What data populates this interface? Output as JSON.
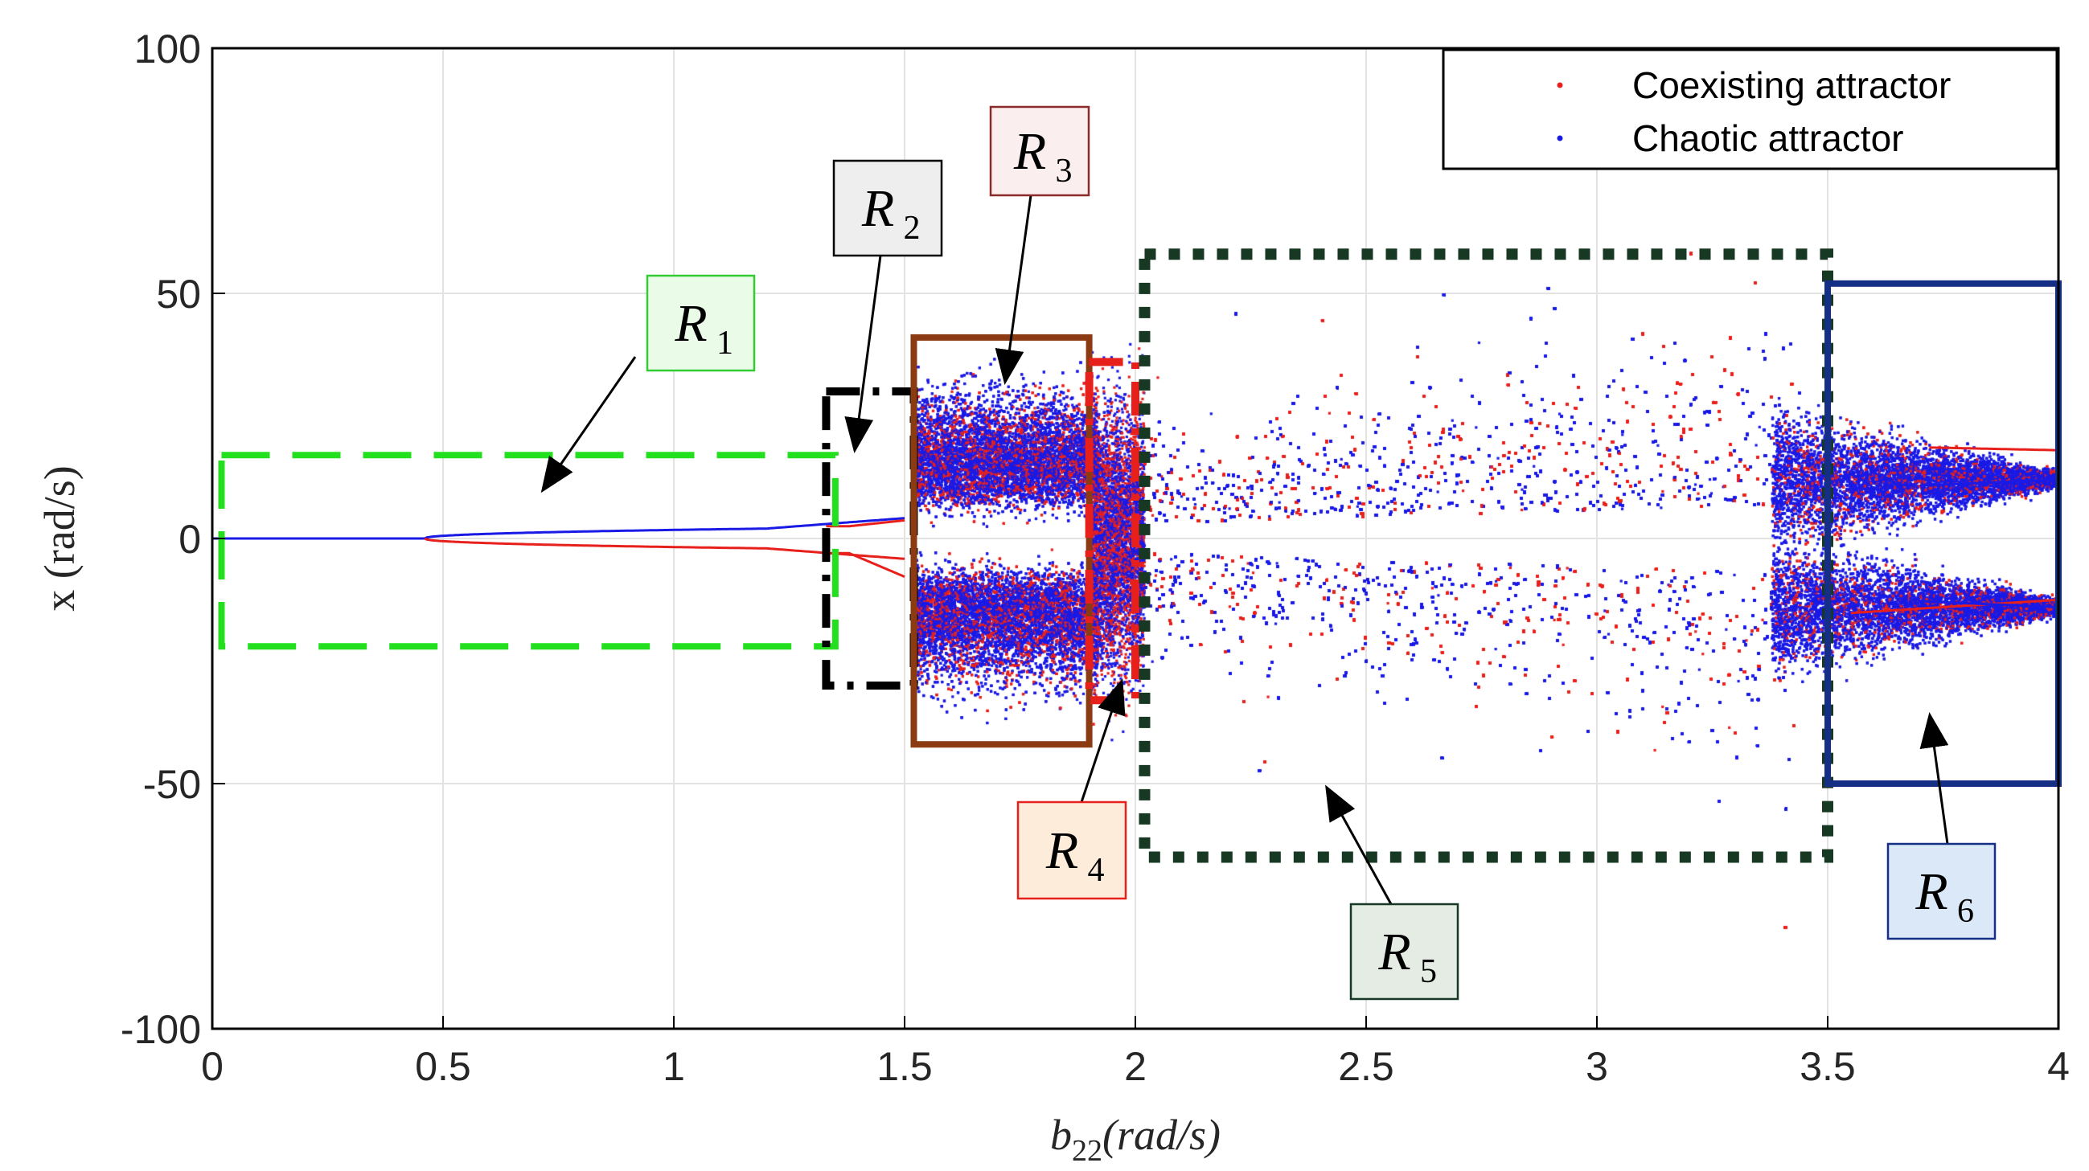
{
  "chart_data": {
    "type": "scatter",
    "title": "",
    "xlabel": "b_22(rad/s)",
    "ylabel": "x (rad/s)",
    "xlim": [
      0,
      4
    ],
    "ylim": [
      -100,
      100
    ],
    "x_ticks": [
      "0",
      "0.5",
      "1",
      "1.5",
      "2",
      "2.5",
      "3",
      "3.5",
      "4"
    ],
    "y_ticks": [
      "100",
      "50",
      "0",
      "-50",
      "-100"
    ],
    "grid": true,
    "legend_position": "top-right",
    "series": [
      {
        "name": "Coexisting attractor",
        "color": "#e8201c"
      },
      {
        "name": "Chaotic attractor",
        "color": "#1a1ae6"
      }
    ],
    "regions": [
      {
        "label": "R",
        "sub": "1",
        "x_range": [
          0.02,
          1.35
        ],
        "y_range": [
          -22,
          17
        ],
        "color": "#22e01e",
        "style": "dashed"
      },
      {
        "label": "R",
        "sub": "2",
        "x_range": [
          1.33,
          1.52
        ],
        "y_range": [
          -30,
          30
        ],
        "color": "#000000",
        "style": "dash-dot"
      },
      {
        "label": "R",
        "sub": "3",
        "x_range": [
          1.52,
          1.9
        ],
        "y_range": [
          -42,
          41
        ],
        "color": "#8b3a12",
        "style": "solid"
      },
      {
        "label": "R",
        "sub": "4",
        "x_range": [
          1.9,
          2.0
        ],
        "y_range": [
          -33,
          36
        ],
        "color": "#e8201c",
        "style": "dash-dot"
      },
      {
        "label": "R",
        "sub": "5",
        "x_range": [
          2.02,
          3.5
        ],
        "y_range": [
          -65,
          58
        ],
        "color": "#173823",
        "style": "dotted"
      },
      {
        "label": "R",
        "sub": "6",
        "x_range": [
          3.5,
          4.0
        ],
        "y_range": [
          -50,
          52
        ],
        "color": "#162f86",
        "style": "solid"
      }
    ]
  }
}
